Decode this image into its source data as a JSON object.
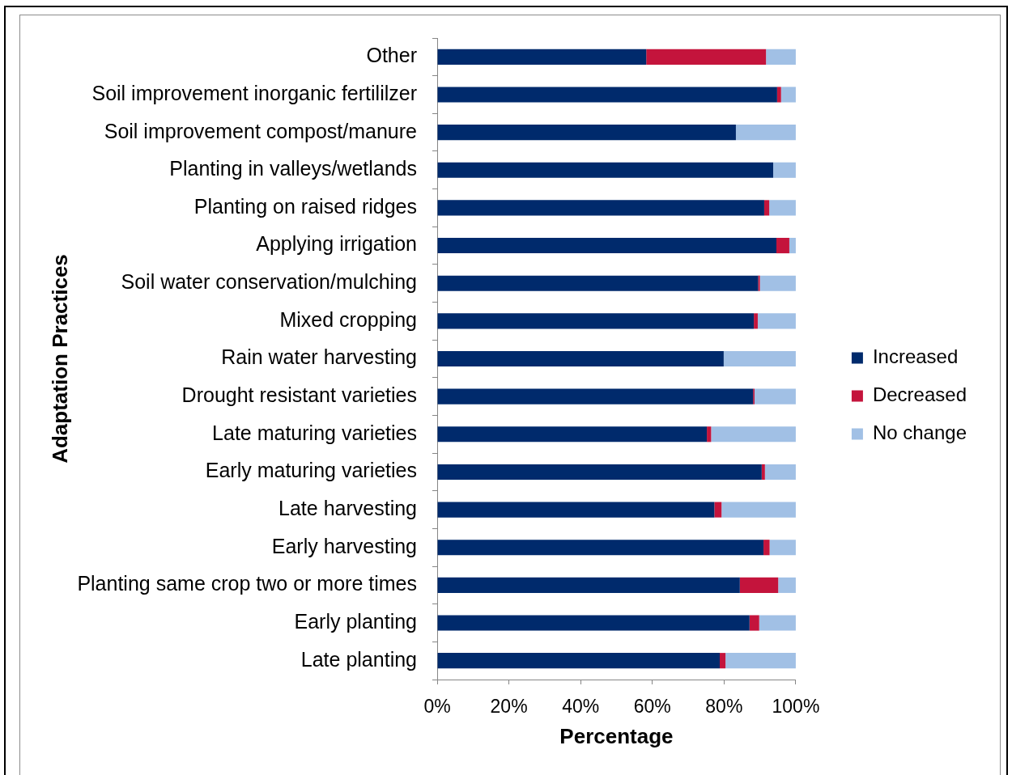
{
  "chart_data": {
    "type": "bar",
    "orientation": "horizontal",
    "stacked": true,
    "xlabel": "Percentage",
    "ylabel": "Adaptation Practices",
    "legend": "right",
    "grid": false,
    "categories": [
      "Other",
      "Soil improvement inorganic fertililzer",
      "Soil improvement compost/manure",
      "Planting in valleys/wetlands",
      "Planting on raised ridges",
      "Applying irrigation",
      "Soil water conservation/mulching",
      "Mixed cropping",
      "Rain water harvesting",
      "Drought resistant varieties",
      "Late maturing varieties",
      "Early maturing varieties",
      "Late harvesting",
      "Early harvesting",
      "Planting same crop two or more times",
      "Early planting",
      "Late planting"
    ],
    "series": [
      {
        "name": "Increased",
        "color": "#002a6c",
        "values": [
          58.3,
          94.8,
          83.3,
          93.7,
          91.2,
          94.6,
          89.5,
          88.3,
          79.9,
          88.1,
          75.2,
          90.5,
          77.3,
          91.0,
          84.4,
          87.1,
          78.8
        ]
      },
      {
        "name": "Decreased",
        "color": "#c4143c",
        "values": [
          33.4,
          1.1,
          0,
          0,
          1.4,
          3.6,
          0.5,
          1.1,
          0,
          0.4,
          1.2,
          0.9,
          2.0,
          1.7,
          10.7,
          2.7,
          1.6
        ]
      },
      {
        "name": "No change",
        "color": "#a1c0e5",
        "values": [
          8.3,
          4.1,
          16.7,
          6.3,
          7.4,
          1.8,
          10.0,
          10.6,
          20.1,
          11.5,
          23.6,
          8.6,
          20.7,
          7.3,
          4.9,
          10.2,
          19.6
        ]
      }
    ],
    "xlim": [
      0,
      100
    ],
    "xticks": [
      {
        "value": 0,
        "label": "0%"
      },
      {
        "value": 20,
        "label": "20%"
      },
      {
        "value": 40,
        "label": "40%"
      },
      {
        "value": 60,
        "label": "60%"
      },
      {
        "value": 80,
        "label": "80%"
      },
      {
        "value": 100,
        "label": "100%"
      }
    ]
  }
}
